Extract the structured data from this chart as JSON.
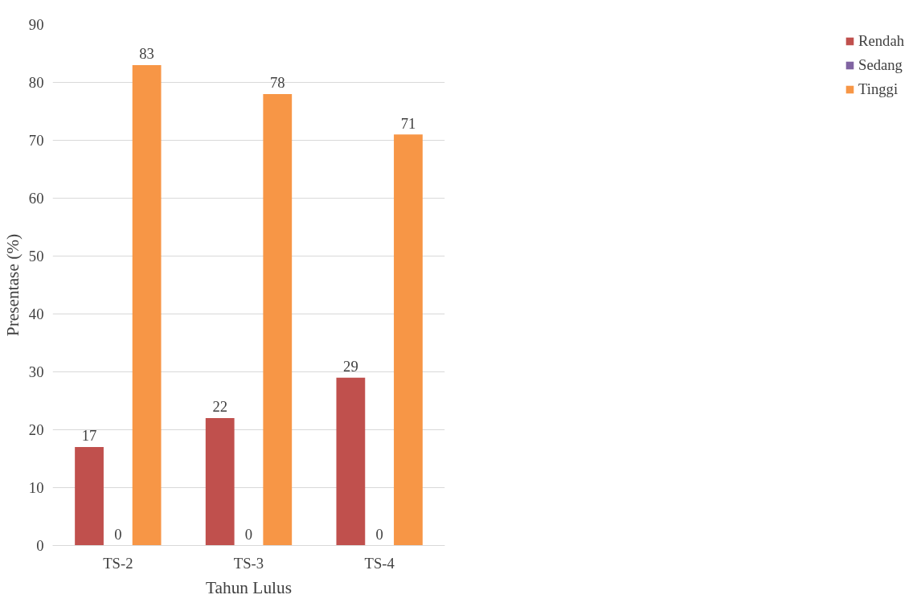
{
  "chart_data": {
    "type": "bar",
    "categories": [
      "TS-2",
      "TS-3",
      "TS-4"
    ],
    "series": [
      {
        "name": "Rendah",
        "color": "#c0504d",
        "values": [
          17,
          22,
          29
        ]
      },
      {
        "name": "Sedang",
        "color": "#8064a2",
        "values": [
          0,
          0,
          0
        ]
      },
      {
        "name": "Tinggi",
        "color": "#f79646",
        "values": [
          83,
          78,
          71
        ]
      }
    ],
    "xlabel": "Tahun Lulus",
    "ylabel": "Presentase (%)",
    "ylim": [
      0,
      90
    ],
    "yticks": [
      0,
      10,
      20,
      30,
      40,
      50,
      60,
      70,
      80,
      90
    ],
    "grid": "y",
    "legend": "right",
    "data_labels": true
  }
}
